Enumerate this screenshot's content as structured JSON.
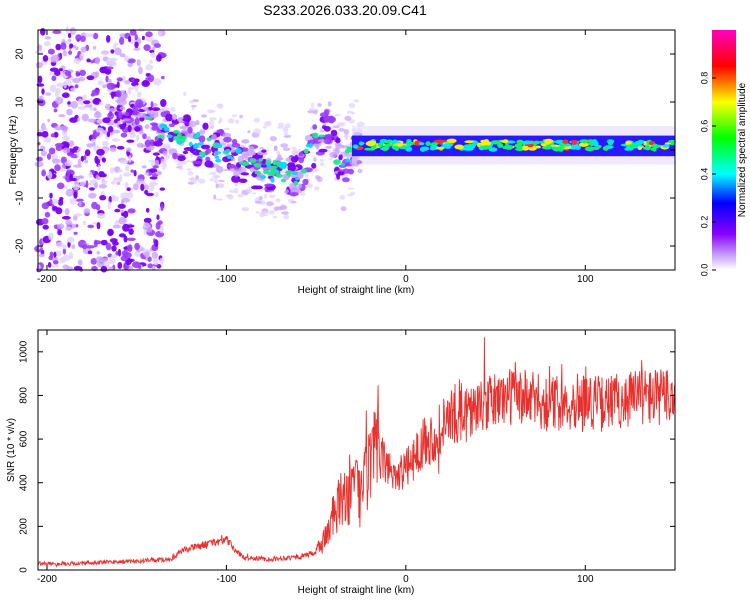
{
  "page": {
    "title": "S233.2026.033.20.09.C41"
  },
  "chart_data": [
    {
      "type": "heatmap",
      "title": "S233.2026.033.20.09.C41",
      "xlabel": "Height of straight line (km)",
      "ylabel": "Frequency (Hz)",
      "xlim": [
        -205,
        150
      ],
      "ylim": [
        -25,
        25
      ],
      "xticks": [
        -200,
        -100,
        0,
        100
      ],
      "xtick_labels": [
        "-200",
        "-100",
        "0",
        "100"
      ],
      "yticks": [
        -20,
        -10,
        0,
        10,
        20
      ],
      "ytick_labels": [
        "-20",
        "-10",
        "0",
        "10",
        "20"
      ],
      "colorbar": {
        "label": "Normalized spectral amplitude",
        "range": [
          0,
          1
        ],
        "ticks": [
          0.0,
          0.2,
          0.4,
          0.6,
          0.8
        ],
        "tick_labels": [
          "0.0",
          "0.2",
          "0.4",
          "0.6",
          "0.8"
        ]
      },
      "ridge": [
        {
          "x": -160,
          "f": 8
        },
        {
          "x": -140,
          "f": 4
        },
        {
          "x": -120,
          "f": 2
        },
        {
          "x": -100,
          "f": -1
        },
        {
          "x": -80,
          "f": -4
        },
        {
          "x": -60,
          "f": -5
        },
        {
          "x": -45,
          "f": 5
        },
        {
          "x": -35,
          "f": -4
        },
        {
          "x": -30,
          "f": 0
        },
        {
          "x": -20,
          "f": 1
        },
        {
          "x": 0,
          "f": 1
        },
        {
          "x": 50,
          "f": 1
        },
        {
          "x": 100,
          "f": 1
        },
        {
          "x": 150,
          "f": 1
        }
      ]
    },
    {
      "type": "line",
      "xlabel": "Height of straight line (km)",
      "ylabel": "SNR (10 * v/v)",
      "xlim": [
        -205,
        150
      ],
      "ylim": [
        0,
        1100
      ],
      "xticks": [
        -200,
        -100,
        0,
        100
      ],
      "xtick_labels": [
        "-200",
        "-100",
        "0",
        "100"
      ],
      "yticks": [
        0,
        200,
        400,
        600,
        800,
        1000
      ],
      "ytick_labels": [
        "0",
        "200",
        "400",
        "600",
        "800",
        "1000"
      ],
      "color": "#e8302c",
      "series": [
        {
          "name": "SNR",
          "x": [
            -205,
            -190,
            -170,
            -150,
            -130,
            -125,
            -115,
            -100,
            -95,
            -90,
            -75,
            -60,
            -50,
            -45,
            -40,
            -35,
            -30,
            -25,
            -20,
            -15,
            -10,
            -5,
            0,
            5,
            10,
            15,
            20,
            25,
            30,
            40,
            50,
            60,
            70,
            80,
            90,
            100,
            110,
            120,
            130,
            140,
            150
          ],
          "y": [
            30,
            28,
            35,
            40,
            50,
            90,
            110,
            140,
            90,
            55,
            50,
            60,
            80,
            150,
            250,
            330,
            380,
            350,
            480,
            530,
            470,
            440,
            460,
            520,
            600,
            600,
            650,
            700,
            730,
            730,
            780,
            800,
            780,
            760,
            770,
            780,
            760,
            780,
            800,
            790,
            800
          ]
        }
      ]
    }
  ]
}
